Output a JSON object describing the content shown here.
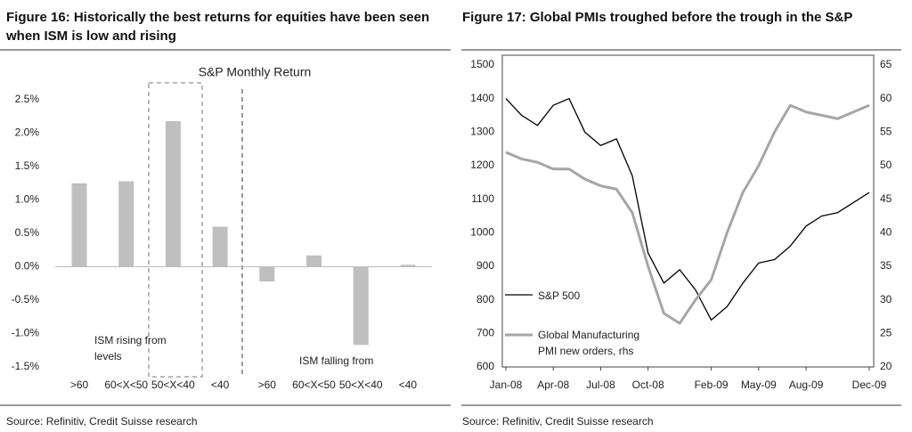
{
  "chart_data": [
    {
      "type": "bar",
      "title": "Figure 16: Historically the best returns for equities have been seen when ISM is low and rising",
      "subtitle": "S&P Monthly Return",
      "categories": [
        ">60",
        "60<X<50",
        "50<X<40",
        "<40",
        ">60",
        "60<X<50",
        "50<X<40",
        "<40"
      ],
      "values": [
        1.25,
        1.28,
        2.18,
        0.6,
        -0.22,
        0.17,
        -1.17,
        0.03
      ],
      "color": "#bfbfbf",
      "ylim": [
        -1.5,
        2.5
      ],
      "yticks": [
        {
          "value": -1.5,
          "label": "-1.5%"
        },
        {
          "value": -1.0,
          "label": "-1.0%"
        },
        {
          "value": -0.5,
          "label": "-0.5%"
        },
        {
          "value": 0,
          "label": "0.0%"
        },
        {
          "value": 0.5,
          "label": "0.5%"
        },
        {
          "value": 1.0,
          "label": "1.0%"
        },
        {
          "value": 1.5,
          "label": "1.5%"
        },
        {
          "value": 2.0,
          "label": "2.0%"
        },
        {
          "value": 2.5,
          "label": "2.5%"
        }
      ],
      "annotations": [
        "ISM rising from levels",
        "ISM falling from"
      ],
      "source": "Source: Refinitiv, Credit Suisse research"
    },
    {
      "type": "line",
      "title": "Figure 17: Global PMIs troughed before the trough in the S&P",
      "categories": [
        "Jan-08",
        null,
        null,
        "Apr-08",
        null,
        null,
        "Jul-08",
        null,
        null,
        "Oct-08",
        null,
        null,
        null,
        "Feb-09",
        null,
        null,
        "May-09",
        null,
        null,
        "Aug-09",
        null,
        null,
        null,
        "Dec-09"
      ],
      "series": [
        {
          "name": "S&P 500",
          "color": "#000000",
          "values": [
            1400,
            1350,
            1320,
            1380,
            1400,
            1300,
            1260,
            1280,
            1170,
            940,
            850,
            890,
            830,
            740,
            780,
            850,
            910,
            920,
            960,
            1020,
            1050,
            1060,
            1090,
            1120
          ]
        },
        {
          "name": "Global Manufacturing PMI new orders, rhs",
          "color": "#a6a6a6",
          "axis": "y2",
          "values": [
            52,
            51,
            50.5,
            49.5,
            49.5,
            48,
            47,
            46.5,
            43,
            35,
            28,
            26.5,
            30,
            33,
            40,
            46,
            50,
            55,
            59,
            58,
            57.5,
            57,
            58,
            59
          ]
        }
      ],
      "ylim": [
        600,
        1500
      ],
      "yticks": [
        600,
        700,
        800,
        900,
        1000,
        1100,
        1200,
        1300,
        1400,
        1500
      ],
      "y2lim": [
        20,
        65
      ],
      "y2ticks": [
        20,
        25,
        30,
        35,
        40,
        45,
        50,
        55,
        60,
        65
      ],
      "source": "Source: Refinitiv, Credit Suisse research"
    }
  ]
}
